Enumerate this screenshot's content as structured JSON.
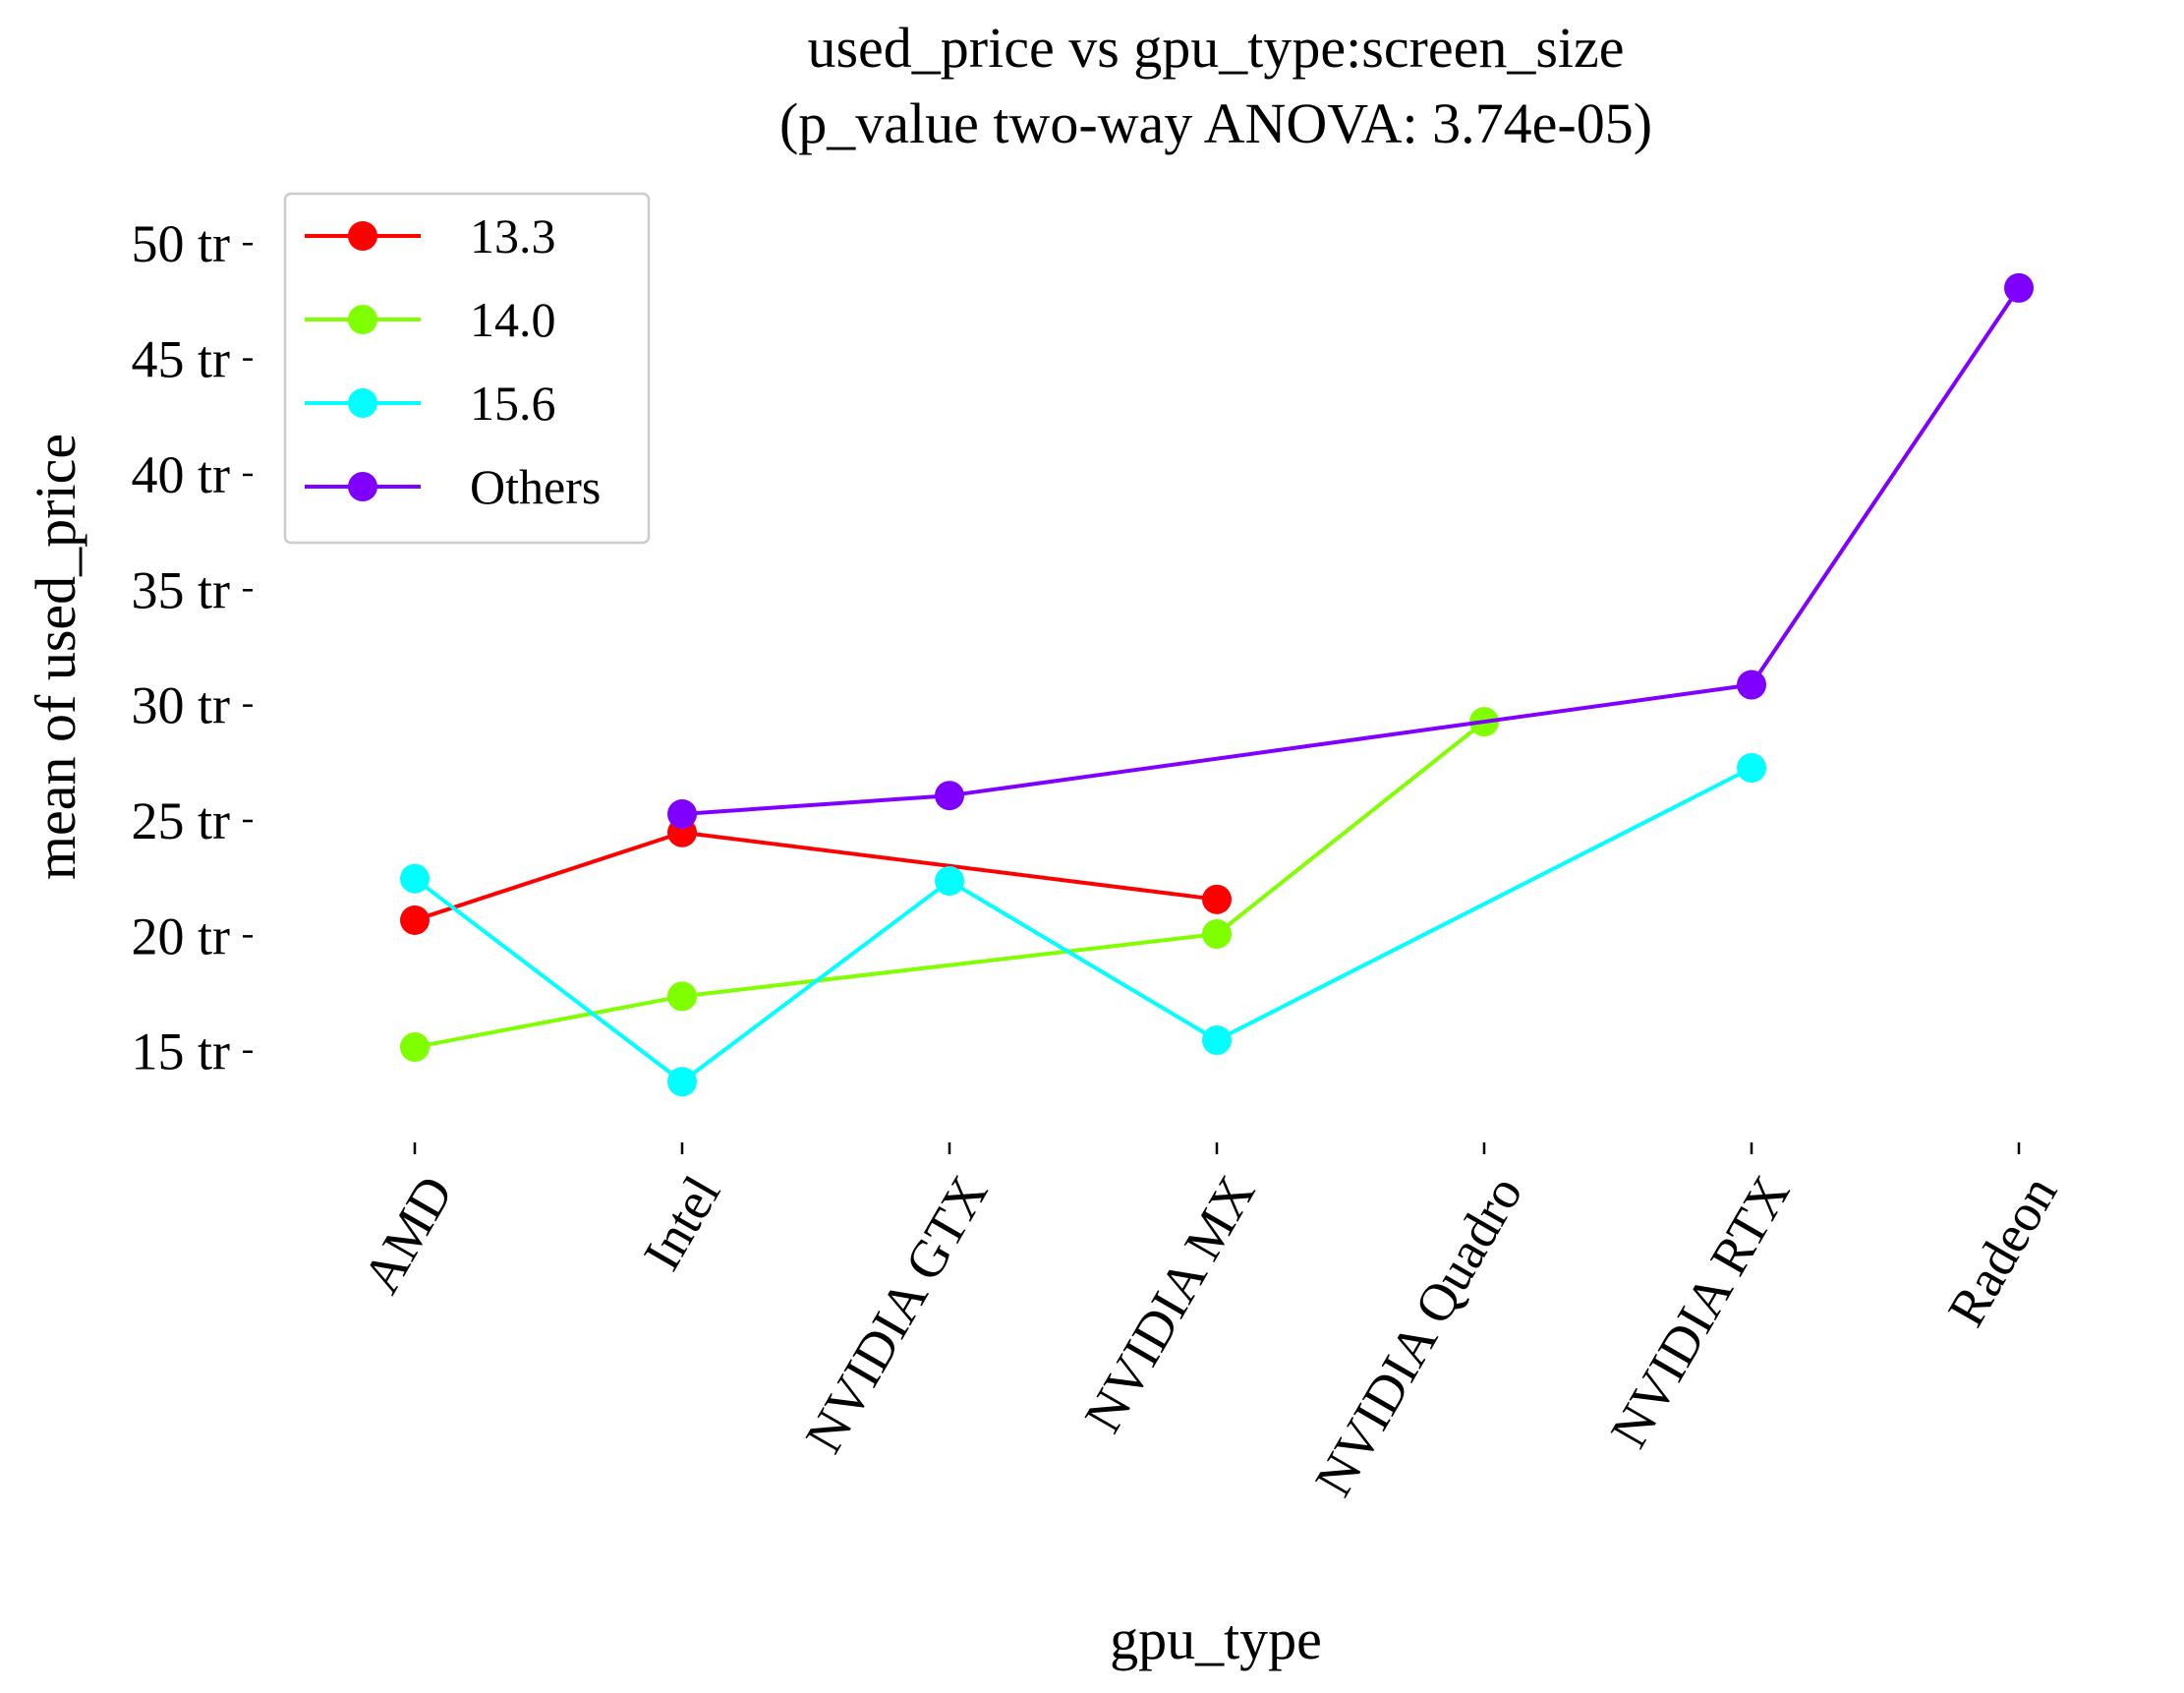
{
  "chart_data": {
    "type": "line",
    "title": "used_price vs gpu_type:screen_size",
    "subtitle": "(p_value two-way ANOVA: 3.74e-05)",
    "xlabel": "gpu_type",
    "ylabel": "mean of used_price",
    "categories": [
      "AMD",
      "Intel",
      "NVIDIA GTX",
      "NVIDIA MX",
      "NVIDIA Quadro",
      "NVIDIA RTX",
      "Radeon"
    ],
    "y_tick_labels": [
      "15 tr",
      "20 tr",
      "25 tr",
      "30 tr",
      "35 tr",
      "40 tr",
      "45 tr",
      "50 tr"
    ],
    "y_ticks": [
      15,
      20,
      25,
      30,
      35,
      40,
      45,
      50
    ],
    "ylim": [
      10.6,
      51.8
    ],
    "grid": false,
    "legend_position": "top-left",
    "series": [
      {
        "name": "13.3",
        "color": "#ff0000",
        "points": [
          {
            "x": "AMD",
            "y": 20.7
          },
          {
            "x": "Intel",
            "y": 24.5
          },
          {
            "x": "NVIDIA MX",
            "y": 21.6
          }
        ]
      },
      {
        "name": "14.0",
        "color": "#80ff00",
        "points": [
          {
            "x": "AMD",
            "y": 15.2
          },
          {
            "x": "Intel",
            "y": 17.4
          },
          {
            "x": "NVIDIA MX",
            "y": 20.1
          },
          {
            "x": "NVIDIA Quadro",
            "y": 29.3
          }
        ]
      },
      {
        "name": "15.6",
        "color": "#00ffff",
        "points": [
          {
            "x": "AMD",
            "y": 22.5
          },
          {
            "x": "Intel",
            "y": 13.7
          },
          {
            "x": "NVIDIA GTX",
            "y": 22.4
          },
          {
            "x": "NVIDIA MX",
            "y": 15.5
          },
          {
            "x": "NVIDIA RTX",
            "y": 27.3
          }
        ]
      },
      {
        "name": "Others",
        "color": "#8000ff",
        "points": [
          {
            "x": "Intel",
            "y": 25.3
          },
          {
            "x": "NVIDIA GTX",
            "y": 26.1
          },
          {
            "x": "NVIDIA RTX",
            "y": 30.9
          },
          {
            "x": "Radeon",
            "y": 48.1
          }
        ]
      }
    ]
  }
}
